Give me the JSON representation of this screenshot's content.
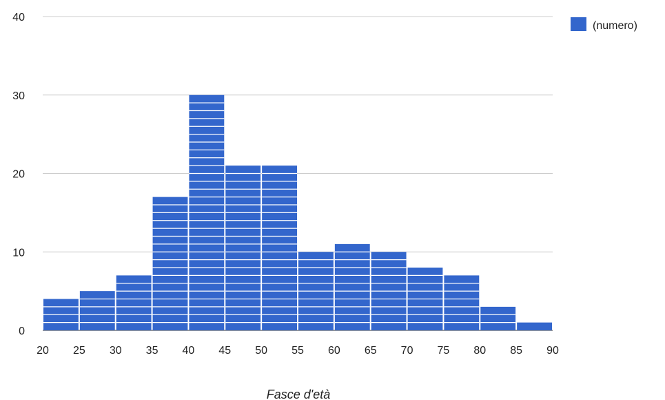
{
  "chart_data": {
    "type": "bar",
    "subtype": "histogram",
    "xlabel": "Fasce d'età",
    "ylabel": "",
    "title": "",
    "x_ticks": [
      "20",
      "25",
      "30",
      "35",
      "40",
      "45",
      "50",
      "55",
      "60",
      "65",
      "70",
      "75",
      "80",
      "85",
      "90"
    ],
    "y_ticks": [
      "0",
      "10",
      "20",
      "30",
      "40"
    ],
    "xlim": [
      20,
      90
    ],
    "ylim": [
      0,
      40
    ],
    "bins": [
      [
        20,
        25
      ],
      [
        25,
        30
      ],
      [
        30,
        35
      ],
      [
        35,
        40
      ],
      [
        40,
        45
      ],
      [
        45,
        50
      ],
      [
        50,
        55
      ],
      [
        55,
        60
      ],
      [
        60,
        65
      ],
      [
        65,
        70
      ],
      [
        70,
        75
      ],
      [
        75,
        80
      ],
      [
        80,
        85
      ],
      [
        85,
        90
      ]
    ],
    "values": [
      4,
      5,
      7,
      17,
      30,
      21,
      21,
      10,
      11,
      10,
      8,
      7,
      3,
      1
    ],
    "series": [
      {
        "name": "(numero)",
        "color": "#3366cc"
      }
    ],
    "legend_position": "top-right",
    "grid": true,
    "colors": {
      "bar": "#3366cc",
      "grid": "#cccccc",
      "separator": "#ffffff"
    }
  }
}
